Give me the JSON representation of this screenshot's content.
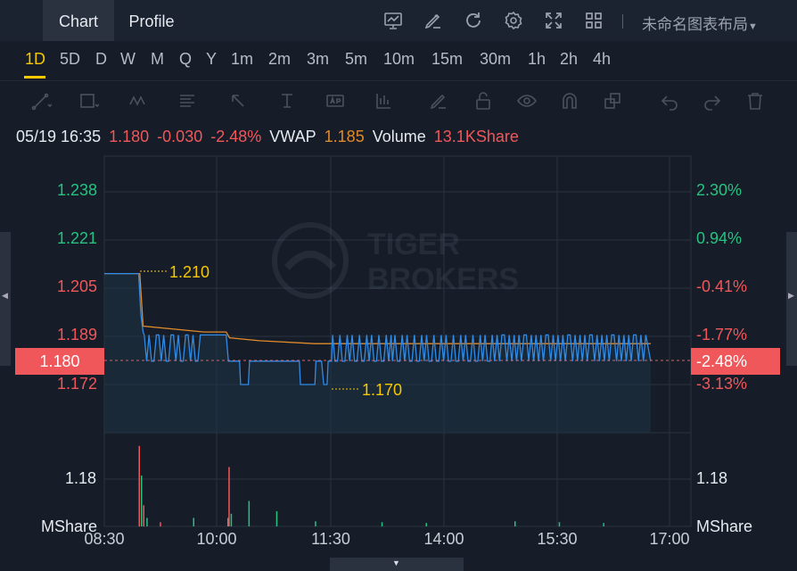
{
  "tabs": {
    "chart": "Chart",
    "profile": "Profile"
  },
  "toolbar_icons": [
    "indicators-icon",
    "draw-icon",
    "refresh-icon",
    "settings-icon",
    "fullscreen-icon",
    "layout-grid-icon"
  ],
  "layout_name": "未命名图表布局",
  "intervals": [
    "1D",
    "5D",
    "D",
    "W",
    "M",
    "Q",
    "Y",
    "1m",
    "2m",
    "3m",
    "5m",
    "10m",
    "15m",
    "30m",
    "1h",
    "2h",
    "4h"
  ],
  "active_interval": "1D",
  "legend": {
    "time": "05/19 16:35",
    "price": "1.180",
    "change": "-0.030",
    "change_pct": "-2.48%",
    "vwap_label": "VWAP",
    "vwap": "1.185",
    "volume_label": "Volume",
    "volume": "13.1KShare"
  },
  "colors": {
    "up": "#26c281",
    "down": "#f0575a",
    "price_line": "#2f8be8",
    "vwap_line": "#e08a2b",
    "callout": "#f5c800",
    "current_box": "#f0575a"
  },
  "chart_data": {
    "type": "line",
    "price_axis_left": [
      "1.238",
      "1.221",
      "1.205",
      "1.189",
      "1.180",
      "1.172"
    ],
    "percent_axis_right": [
      "2.30%",
      "0.94%",
      "-0.41%",
      "-1.77%",
      "-2.48%",
      "-3.13%"
    ],
    "current_price": "1.180",
    "current_pct": "-2.48%",
    "high_callout": "1.210",
    "low_callout": "1.170",
    "x_labels": [
      "08:30",
      "10:00",
      "11:30",
      "14:00",
      "15:30",
      "17:00"
    ],
    "volume_axis_left": "1.18",
    "volume_axis_right": "1.18",
    "volume_unit_left": "MShare",
    "volume_unit_right": "MShare",
    "watermark": "TIGER BROKERS"
  }
}
